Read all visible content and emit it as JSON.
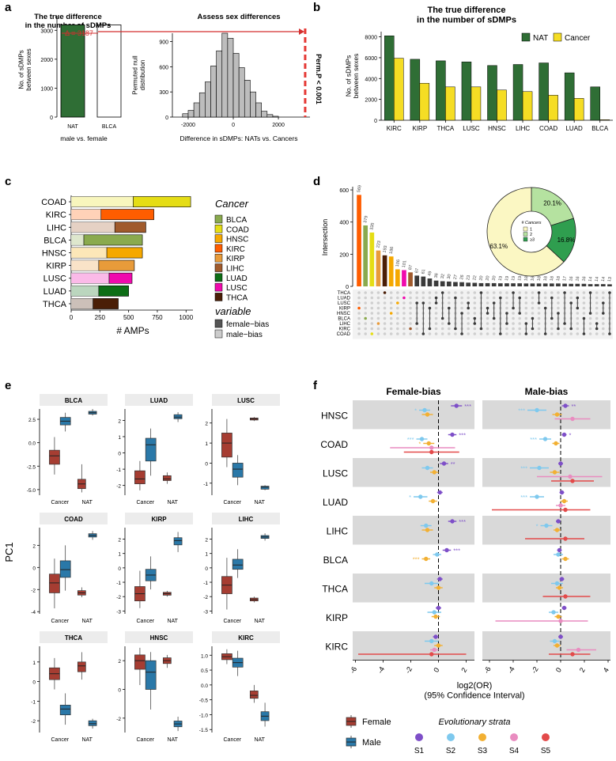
{
  "labels": {
    "a": "a",
    "b": "b",
    "c": "c",
    "d": "d",
    "e": "e",
    "f": "f"
  },
  "colors": {
    "nat": "#2e7d32",
    "cancer": "#f5dd24",
    "blca": "#8aaa4e",
    "natbar": "#2f6e35",
    "female": "#a63d32",
    "male": "#2a78a8",
    "strata": [
      "#7e4fc8",
      "#7ec9ee",
      "#f2b033",
      "#e98cc0",
      "#e34a4a"
    ],
    "cancers": [
      "#8aaa4e",
      "#e5dd15",
      "#f5a800",
      "#ff5d00",
      "#e89b3a",
      "#a05a2c",
      "#0d6e16",
      "#f00aad",
      "#4a1e06"
    ]
  },
  "panel_a": {
    "bar": {
      "title": "The true difference\nin the number of sDMPs",
      "ylabel": "No. of sDMPs\nbetween sexes",
      "xlabel": "male vs. female",
      "categories": [
        "NAT",
        "BLCA"
      ],
      "values": [
        3187,
        0
      ],
      "ylim": [
        0,
        3500
      ],
      "yticks": [
        0,
        1000,
        2000,
        3000
      ],
      "annotation": "Δ = 3187"
    },
    "hist": {
      "title": "Assess sex differences",
      "ylabel": "Permuted null\ndistribution",
      "xlabel": "Difference in sDMPs: NATs vs. Cancers",
      "xticks": [
        -2000,
        0,
        2000
      ],
      "yticks": [
        0,
        300,
        600,
        900
      ],
      "ylim": [
        0,
        1000
      ],
      "bins_start": -2250,
      "bin_width": 250,
      "counts": [
        40,
        80,
        170,
        290,
        420,
        610,
        790,
        1000,
        940,
        760,
        590,
        440,
        300,
        170,
        70,
        30,
        10
      ],
      "observed": 3187,
      "perm_label": "Perm.P < 0.001"
    }
  },
  "panel_b": {
    "type": "bar",
    "title": "The true difference\nin the number of sDMPs",
    "ylabel": "No. of sDMPs\nbetween sexes",
    "categories": [
      "KIRC",
      "KIRP",
      "THCA",
      "LUSC",
      "HNSC",
      "LIHC",
      "COAD",
      "LUAD",
      "BLCA"
    ],
    "series": [
      {
        "name": "NAT",
        "values": [
          8100,
          5850,
          5700,
          5600,
          5250,
          5350,
          5500,
          4550,
          3200
        ]
      },
      {
        "name": "Cancer",
        "values": [
          5950,
          3550,
          3200,
          3200,
          2900,
          2750,
          2400,
          2100,
          50
        ]
      }
    ],
    "ylim": [
      0,
      8500
    ],
    "yticks": [
      0,
      2000,
      4000,
      6000,
      8000
    ]
  },
  "panel_c": {
    "type": "bar",
    "xlabel": "# AMPs",
    "xticks": [
      0,
      250,
      500,
      750,
      1000
    ],
    "xlim": [
      0,
      1060
    ],
    "categories": [
      "COAD",
      "KIRC",
      "LIHC",
      "BLCA",
      "HNSC",
      "KIRP",
      "LUSC",
      "LUAD",
      "THCA"
    ],
    "male": [
      540,
      260,
      380,
      110,
      310,
      240,
      330,
      240,
      190
    ],
    "female": [
      1040,
      720,
      650,
      620,
      620,
      550,
      530,
      500,
      410
    ],
    "cancer_index": [
      1,
      3,
      5,
      0,
      2,
      4,
      7,
      6,
      8
    ],
    "legend_title": "Cancer",
    "legend": [
      "BLCA",
      "COAD",
      "HNSC",
      "KIRC",
      "KIRP",
      "LIHC",
      "LUAD",
      "LUSC",
      "THCA"
    ],
    "var_title": "variable",
    "var_legend": [
      "female−bias",
      "male−bias"
    ]
  },
  "panel_d": {
    "ylabel": "Intersection",
    "yticks": [
      0,
      200,
      400,
      600
    ],
    "ymax": 620,
    "values": [
      569,
      379,
      335,
      223,
      193,
      186,
      106,
      101,
      87,
      67,
      61,
      49,
      36,
      32,
      30,
      27,
      26,
      23,
      22,
      20,
      20,
      20,
      19,
      19,
      19,
      19,
      18,
      18,
      18,
      18,
      18,
      18,
      17,
      16,
      16,
      16,
      14,
      14,
      14,
      13
    ],
    "colors_idx": [
      3,
      0,
      1,
      4,
      8,
      2,
      2,
      7,
      5,
      -1,
      -1,
      -1,
      -1,
      -1,
      -1,
      -1,
      -1,
      -1,
      -1,
      -1,
      -1,
      -1,
      -1,
      -1,
      -1,
      -1,
      -1,
      -1,
      -1,
      -1,
      -1,
      -1,
      -1,
      -1,
      -1,
      -1,
      -1,
      -1,
      -1,
      -1
    ],
    "sets": [
      "THCA",
      "LUAD",
      "LUSC",
      "KIRP",
      "HNSC",
      "BLCA",
      "LIHC",
      "KIRC",
      "COAD"
    ],
    "pie": {
      "title": "# Cancers",
      "legend": [
        "1",
        "2",
        "≥3"
      ],
      "values": [
        63.1,
        20.1,
        16.8
      ],
      "labels": [
        "63.1%",
        "20.1%",
        "16.8%"
      ],
      "colors": [
        "#fbf7c3",
        "#b5e2a0",
        "#2f9e4f"
      ]
    }
  },
  "panel_e": {
    "ylabel": "PC1",
    "panels": [
      {
        "title": "BLCA",
        "yticks": [
          2.5,
          0,
          -2.5,
          -5
        ],
        "ytick_labels": [
          "2.5",
          "0.0",
          "-2.5",
          "-5.0"
        ],
        "ylim": [
          -5.6,
          3.6
        ],
        "boxes": [
          [
            -3.4,
            -2.3,
            -1.4,
            -0.8,
            0.6
          ],
          [
            1.2,
            1.9,
            2.3,
            2.7,
            3.2
          ],
          [
            -5.3,
            -4.9,
            -4.4,
            -3.9,
            -2.3
          ],
          [
            2.9,
            3.05,
            3.2,
            3.35,
            3.6
          ]
        ]
      },
      {
        "title": "LUAD",
        "yticks": [
          2,
          1,
          0,
          -1,
          -2
        ],
        "ytick_labels": [
          "2",
          "1",
          "0",
          "-1",
          "-2"
        ],
        "ylim": [
          -2.6,
          2.7
        ],
        "boxes": [
          [
            -2.3,
            -1.9,
            -1.6,
            -1.1,
            -0.5
          ],
          [
            -1.4,
            -0.5,
            0.5,
            0.9,
            1.5
          ],
          [
            -1.9,
            -1.7,
            -1.6,
            -1.4,
            -1.2
          ],
          [
            1.9,
            2.1,
            2.2,
            2.35,
            2.5
          ]
        ]
      },
      {
        "title": "LUSC",
        "yticks": [
          2,
          1,
          0,
          -1
        ],
        "ytick_labels": [
          "2",
          "1",
          "0",
          "-1"
        ],
        "ylim": [
          -1.6,
          2.7
        ],
        "boxes": [
          [
            -0.2,
            0.3,
            1.0,
            1.5,
            2.2
          ],
          [
            -1.1,
            -0.7,
            -0.3,
            0.0,
            0.4
          ],
          [
            2.1,
            2.15,
            2.2,
            2.25,
            2.3
          ],
          [
            -1.35,
            -1.3,
            -1.2,
            -1.15,
            -1.1
          ]
        ]
      },
      {
        "title": "COAD",
        "yticks": [
          2,
          0,
          -2,
          -4
        ],
        "ytick_labels": [
          "2",
          "0",
          "-2",
          "-4"
        ],
        "ylim": [
          -4.2,
          3.6
        ],
        "boxes": [
          [
            -3.7,
            -2.3,
            -1.4,
            -0.6,
            0.8
          ],
          [
            -2.1,
            -0.9,
            -0.2,
            0.6,
            2.0
          ],
          [
            -2.7,
            -2.5,
            -2.3,
            -2.1,
            -1.8
          ],
          [
            2.5,
            2.75,
            2.9,
            3.05,
            3.3
          ]
        ]
      },
      {
        "title": "KIRP",
        "yticks": [
          2,
          1,
          0,
          -1,
          -2,
          -3
        ],
        "ytick_labels": [
          "2",
          "1",
          "0",
          "-1",
          "-2",
          "-3"
        ],
        "ylim": [
          -3.2,
          2.8
        ],
        "boxes": [
          [
            -2.8,
            -2.3,
            -1.8,
            -1.3,
            -0.2
          ],
          [
            -1.5,
            -0.9,
            -0.5,
            -0.1,
            0.8
          ],
          [
            -2.0,
            -1.9,
            -1.8,
            -1.7,
            -1.6
          ],
          [
            1.1,
            1.6,
            1.9,
            2.1,
            2.5
          ]
        ]
      },
      {
        "title": "LIHC",
        "yticks": [
          2,
          1,
          0,
          -1,
          -2,
          -3
        ],
        "ytick_labels": [
          "2",
          "1",
          "0",
          "-1",
          "-2",
          "-3"
        ],
        "ylim": [
          -3.2,
          2.8
        ],
        "boxes": [
          [
            -2.9,
            -1.8,
            -1.2,
            -0.6,
            0.7
          ],
          [
            -0.7,
            -0.1,
            0.2,
            0.6,
            1.3
          ],
          [
            -2.4,
            -2.3,
            -2.2,
            -2.1,
            -2.0
          ],
          [
            1.9,
            2.05,
            2.15,
            2.25,
            2.4
          ]
        ]
      },
      {
        "title": "THCA",
        "yticks": [
          1,
          0,
          -1,
          -2
        ],
        "ytick_labels": [
          "1",
          "0",
          "-1",
          "-2"
        ],
        "ylim": [
          -2.6,
          1.8
        ],
        "boxes": [
          [
            -0.4,
            0.1,
            0.4,
            0.7,
            1.2
          ],
          [
            -2.2,
            -1.7,
            -1.4,
            -1.2,
            -0.6
          ],
          [
            0.1,
            0.5,
            0.8,
            1.0,
            1.5
          ],
          [
            -2.4,
            -2.25,
            -2.15,
            -2.0,
            -1.9
          ]
        ]
      },
      {
        "title": "HNSC",
        "yticks": [
          2,
          0,
          -2
        ],
        "ytick_labels": [
          "2",
          "0",
          "-2"
        ],
        "ylim": [
          -3.0,
          3.0
        ],
        "boxes": [
          [
            0.3,
            1.4,
            2.0,
            2.4,
            2.9
          ],
          [
            -1.4,
            0.0,
            1.2,
            2.0,
            2.6
          ],
          [
            1.5,
            1.8,
            2.0,
            2.2,
            2.4
          ],
          [
            -2.9,
            -2.6,
            -2.4,
            -2.2,
            -1.9
          ]
        ]
      },
      {
        "title": "KIRC",
        "yticks": [
          1.0,
          0.5,
          0,
          -0.5,
          -1.0,
          -1.5
        ],
        "ytick_labels": [
          "1.0",
          "0.5",
          "0.0",
          "-0.5",
          "-1.0",
          "-1.5"
        ],
        "ylim": [
          -1.6,
          1.3
        ],
        "boxes": [
          [
            0.7,
            0.85,
            0.95,
            1.05,
            1.2
          ],
          [
            0.3,
            0.6,
            0.75,
            0.9,
            1.15
          ],
          [
            -0.6,
            -0.45,
            -0.35,
            -0.2,
            0.0
          ],
          [
            -1.4,
            -1.2,
            -1.05,
            -0.9,
            -0.6
          ]
        ]
      }
    ],
    "xcats": [
      "Cancer",
      "NAT"
    ],
    "legend": [
      "Female",
      "Male"
    ]
  },
  "panel_f": {
    "titles": [
      "Female-bias",
      "Male-bias"
    ],
    "cancers": [
      "HNSC",
      "COAD",
      "LUSC",
      "LUAD",
      "LIHC",
      "BLCA",
      "THCA",
      "KIRP",
      "KIRC"
    ],
    "xticks": [
      -6,
      -4,
      -2,
      0,
      2
    ],
    "xticks_right": [
      -6,
      -4,
      -2,
      0,
      2,
      4
    ],
    "xlim": [
      -6.2,
      2.6
    ],
    "xlim_right": [
      -6.6,
      4.2
    ],
    "xlabel": "log2(OR)\n(95% Confidence Interval)",
    "female": [
      [
        [
          1.3,
          0.9,
          1.7,
          "***"
        ],
        [
          -1.0,
          -1.4,
          -0.6,
          "*"
        ],
        [
          -0.8,
          -1.2,
          -0.4,
          ""
        ],
        null,
        null
      ],
      [
        [
          1.0,
          0.7,
          1.3,
          "***"
        ],
        [
          -1.2,
          -1.6,
          -0.8,
          "***"
        ],
        [
          -0.7,
          -1.1,
          -0.3,
          "*"
        ],
        [
          -0.5,
          -3.5,
          1.2,
          ""
        ],
        [
          -0.5,
          -2.5,
          1.5,
          ""
        ]
      ],
      [
        [
          0.4,
          0.1,
          0.7,
          "**"
        ],
        [
          -0.8,
          -1.2,
          -0.4,
          ""
        ],
        [
          -0.3,
          -0.6,
          0.0,
          ""
        ],
        null,
        null
      ],
      [
        [
          0.1,
          -0.1,
          0.3,
          ""
        ],
        [
          -1.3,
          -1.8,
          -0.8,
          "*"
        ],
        [
          -0.4,
          -0.7,
          -0.1,
          ""
        ],
        null,
        null
      ],
      [
        [
          1.0,
          0.7,
          1.3,
          "***"
        ],
        [
          -0.9,
          -1.3,
          -0.5,
          ""
        ],
        [
          -0.8,
          -1.2,
          -0.4,
          ""
        ],
        null,
        null
      ],
      [
        [
          0.6,
          0.3,
          0.9,
          "***"
        ],
        [
          -0.1,
          -0.4,
          0.2,
          ""
        ],
        [
          -0.9,
          -1.2,
          -0.6,
          "***"
        ],
        null,
        null
      ],
      [
        [
          0.1,
          -0.1,
          0.3,
          ""
        ],
        [
          -0.5,
          -1.0,
          0.0,
          ""
        ],
        [
          0.0,
          -0.3,
          0.3,
          ""
        ],
        null,
        null
      ],
      [
        [
          0.0,
          -0.2,
          0.2,
          ""
        ],
        [
          -0.3,
          -0.8,
          0.2,
          ""
        ],
        [
          -0.2,
          -0.5,
          0.1,
          ""
        ],
        null,
        null
      ],
      [
        [
          -0.2,
          -0.4,
          0.0,
          ""
        ],
        [
          -0.5,
          -1.0,
          0.0,
          ""
        ],
        [
          0.0,
          -0.3,
          0.3,
          ""
        ],
        [
          -0.3,
          -0.6,
          0.0,
          ""
        ],
        [
          -0.5,
          -5.8,
          2.0,
          ""
        ]
      ]
    ],
    "male": [
      [
        [
          0.4,
          0.1,
          0.7,
          "**"
        ],
        [
          -2.0,
          -2.8,
          -1.2,
          "***"
        ],
        [
          -0.3,
          -0.7,
          0.1,
          ""
        ],
        [
          1.0,
          -0.5,
          2.5,
          ""
        ],
        null
      ],
      [
        [
          0.3,
          0.1,
          0.5,
          "*"
        ],
        [
          -1.3,
          -1.8,
          -0.8,
          "***"
        ],
        [
          -0.4,
          -0.7,
          -0.1,
          ""
        ],
        null,
        null
      ],
      [
        [
          0.0,
          -0.2,
          0.2,
          ""
        ],
        [
          -1.8,
          -2.6,
          -1.0,
          "***"
        ],
        [
          -0.5,
          -0.9,
          -0.1,
          ""
        ],
        [
          0.8,
          -2.0,
          3.5,
          ""
        ],
        [
          1.0,
          -0.8,
          2.8,
          ""
        ]
      ],
      [
        [
          0.1,
          -0.1,
          0.3,
          ""
        ],
        [
          -2.0,
          -2.6,
          -1.4,
          "***"
        ],
        [
          0.3,
          0.0,
          0.6,
          ""
        ],
        [
          0.0,
          -0.4,
          0.4,
          ""
        ],
        [
          0.4,
          -5.8,
          2.5,
          ""
        ]
      ],
      [
        [
          -0.2,
          -0.4,
          0.0,
          ""
        ],
        [
          -1.2,
          -1.7,
          -0.7,
          "*"
        ],
        [
          -0.3,
          -0.6,
          0.0,
          ""
        ],
        null,
        [
          0.4,
          -3.0,
          2.0,
          ""
        ]
      ],
      [
        [
          -0.1,
          -0.3,
          0.1,
          ""
        ],
        [
          -0.2,
          -0.6,
          0.2,
          ""
        ],
        [
          0.4,
          0.1,
          0.7,
          ""
        ],
        null,
        null
      ],
      [
        [
          0.1,
          -0.1,
          0.3,
          ""
        ],
        [
          -0.3,
          -0.8,
          0.2,
          ""
        ],
        [
          -0.1,
          -0.4,
          0.2,
          ""
        ],
        null,
        [
          0.4,
          -1.5,
          2.5,
          ""
        ]
      ],
      [
        [
          0.3,
          0.1,
          0.5,
          ""
        ],
        [
          -0.6,
          -1.0,
          -0.2,
          ""
        ],
        [
          -0.2,
          -0.5,
          0.1,
          ""
        ],
        [
          0.0,
          -5.5,
          2.3,
          ""
        ],
        null
      ],
      [
        [
          0.0,
          -0.2,
          0.2,
          ""
        ],
        [
          -0.5,
          -0.9,
          -0.1,
          ""
        ],
        [
          -0.3,
          -0.6,
          0.0,
          ""
        ],
        [
          1.5,
          0.5,
          3.0,
          ""
        ],
        [
          1.0,
          -1.0,
          2.5,
          ""
        ]
      ]
    ],
    "legend_title": "Evolutionary strata",
    "strata": [
      "S1",
      "S2",
      "S3",
      "S4",
      "S5"
    ]
  }
}
